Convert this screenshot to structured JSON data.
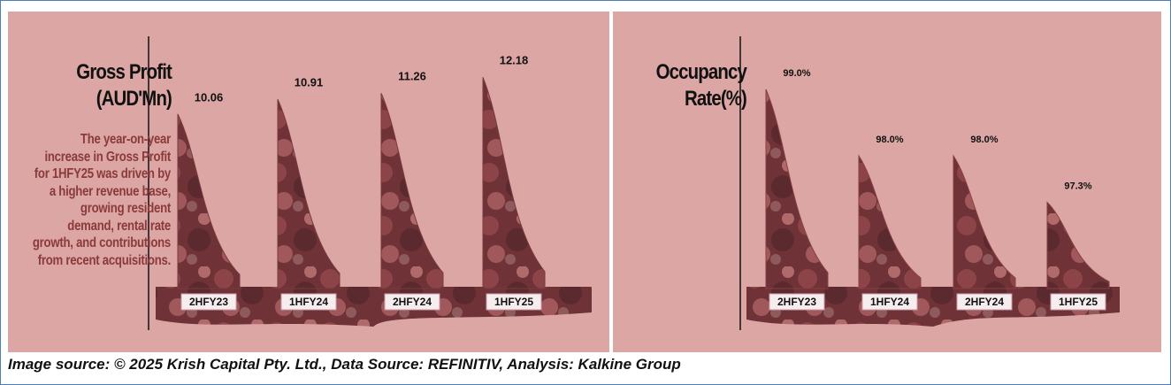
{
  "chart_data": [
    {
      "type": "bar",
      "title": "Gross Profit (AUD'Mn)",
      "categories": [
        "2HFY23",
        "1HFY24",
        "2HFY24",
        "1HFY25"
      ],
      "values": [
        10.06,
        10.91,
        11.26,
        12.18
      ],
      "ylim": [
        0,
        12.5
      ],
      "color": "#7a3a3e"
    },
    {
      "type": "bar",
      "title": "Occupancy Rate(%)",
      "categories": [
        "2HFY23",
        "1HFY24",
        "2HFY24",
        "1HFY25"
      ],
      "values": [
        99.0,
        98.0,
        98.0,
        97.3
      ],
      "value_labels": [
        "99.0%",
        "98.0%",
        "98.0%",
        "97.3%"
      ],
      "ylim": [
        96,
        99
      ],
      "color": "#8a3f43"
    }
  ],
  "description": "The year-on-year increase in Gross Profit for 1HFY25 was driven by a higher revenue base, growing resident demand, rental rate growth, and contributions from recent acquisitions.",
  "source": "Image source: © 2025 Krish Capital Pty. Ltd., Data Source: REFINITIV, Analysis: Kalkine Group"
}
